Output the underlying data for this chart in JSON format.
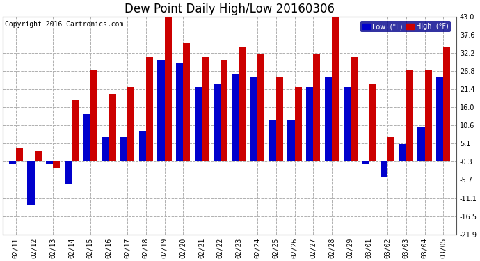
{
  "title": "Dew Point Daily High/Low 20160306",
  "copyright": "Copyright 2016 Cartronics.com",
  "legend_low": "Low  (°F)",
  "legend_high": "High  (°F)",
  "dates": [
    "02/11",
    "02/12",
    "02/13",
    "02/14",
    "02/15",
    "02/16",
    "02/17",
    "02/18",
    "02/19",
    "02/20",
    "02/21",
    "02/22",
    "02/23",
    "02/24",
    "02/25",
    "02/26",
    "02/27",
    "02/28",
    "02/29",
    "03/01",
    "03/02",
    "03/03",
    "03/04",
    "03/05"
  ],
  "lows": [
    -1,
    -13,
    -1,
    -7,
    14,
    7,
    7,
    9,
    30,
    29,
    22,
    23,
    26,
    25,
    12,
    12,
    22,
    25,
    22,
    -1,
    -5,
    5,
    10,
    25
  ],
  "highs": [
    4,
    3,
    -2,
    18,
    27,
    20,
    22,
    31,
    44,
    35,
    31,
    30,
    34,
    32,
    25,
    22,
    32,
    44,
    31,
    23,
    7,
    27,
    27,
    34
  ],
  "ylim": [
    -21.9,
    43.0
  ],
  "yticks": [
    -21.9,
    -16.5,
    -11.1,
    -5.7,
    -0.3,
    5.1,
    10.6,
    16.0,
    21.4,
    26.8,
    32.2,
    37.6,
    43.0
  ],
  "low_color": "#0000cc",
  "high_color": "#cc0000",
  "bg_color": "#ffffff",
  "grid_color": "#b0b0b0",
  "bar_width": 0.38,
  "title_fontsize": 12,
  "tick_fontsize": 7,
  "copyright_fontsize": 7
}
